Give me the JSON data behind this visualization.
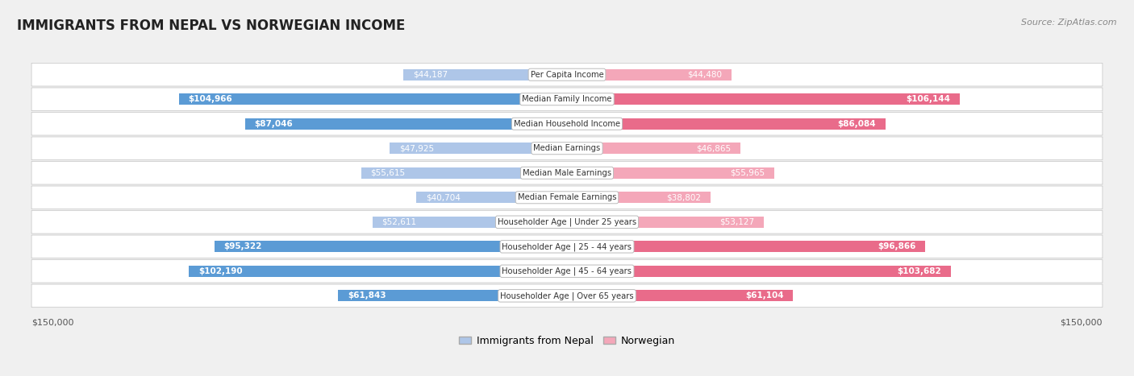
{
  "title": "IMMIGRANTS FROM NEPAL VS NORWEGIAN INCOME",
  "source": "Source: ZipAtlas.com",
  "categories": [
    "Per Capita Income",
    "Median Family Income",
    "Median Household Income",
    "Median Earnings",
    "Median Male Earnings",
    "Median Female Earnings",
    "Householder Age | Under 25 years",
    "Householder Age | 25 - 44 years",
    "Householder Age | 45 - 64 years",
    "Householder Age | Over 65 years"
  ],
  "nepal_values": [
    44187,
    104966,
    87046,
    47925,
    55615,
    40704,
    52611,
    95322,
    102190,
    61843
  ],
  "norwegian_values": [
    44480,
    106144,
    86084,
    46865,
    55965,
    38802,
    53127,
    96866,
    103682,
    61104
  ],
  "nepal_labels": [
    "$44,187",
    "$104,966",
    "$87,046",
    "$47,925",
    "$55,615",
    "$40,704",
    "$52,611",
    "$95,322",
    "$102,190",
    "$61,843"
  ],
  "norwegian_labels": [
    "$44,480",
    "$106,144",
    "$86,084",
    "$46,865",
    "$55,965",
    "$38,802",
    "$53,127",
    "$96,866",
    "$103,682",
    "$61,104"
  ],
  "nepal_color_light": "#aec6e8",
  "nepal_color_dark": "#5b9bd5",
  "norwegian_color_light": "#f4a7b9",
  "norwegian_color_dark": "#e96b8a",
  "max_value": 150000,
  "nepal_label": "Immigrants from Nepal",
  "norwegian_label": "Norwegian",
  "background_color": "#f0f0f0",
  "dark_threshold": 60000,
  "label_inside_threshold": 35000
}
